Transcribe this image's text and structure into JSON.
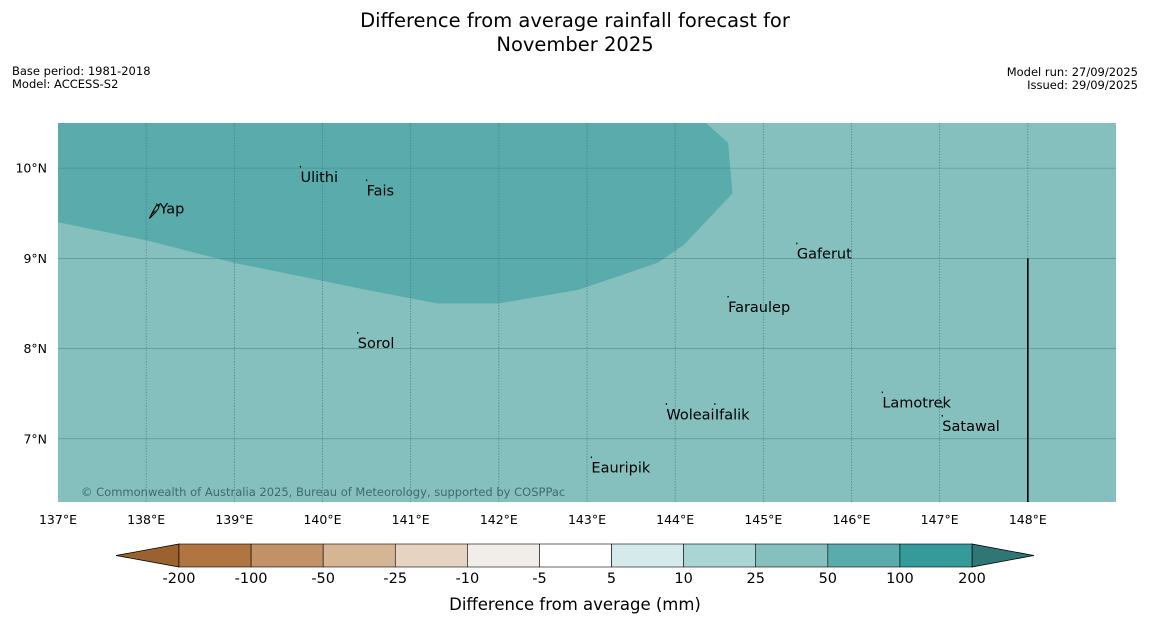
{
  "title": {
    "line1": "Difference from average rainfall forecast for",
    "line2": "November 2025"
  },
  "meta_left": {
    "base_period": "Base period: 1981-2018",
    "model": "Model: ACCESS-S2"
  },
  "meta_right": {
    "model_run": "Model run: 27/09/2025",
    "issued": "Issued: 29/09/2025"
  },
  "map": {
    "lon_range": [
      137,
      149
    ],
    "lat_range": [
      6.3,
      10.5
    ],
    "base_color": "#85c0bf",
    "wet_zone_color": "#5aabac",
    "grid_color": "#3f7f80",
    "copyright": "© Commonwealth of Australia 2025, Bureau of Meteorology, supported by COSPPac",
    "lon_ticks": [
      {
        "value": 137,
        "label": "137°E"
      },
      {
        "value": 138,
        "label": "138°E"
      },
      {
        "value": 139,
        "label": "139°E"
      },
      {
        "value": 140,
        "label": "140°E"
      },
      {
        "value": 141,
        "label": "141°E"
      },
      {
        "value": 142,
        "label": "142°E"
      },
      {
        "value": 143,
        "label": "143°E"
      },
      {
        "value": 144,
        "label": "144°E"
      },
      {
        "value": 145,
        "label": "145°E"
      },
      {
        "value": 146,
        "label": "146°E"
      },
      {
        "value": 147,
        "label": "147°E"
      },
      {
        "value": 148,
        "label": "148°E"
      }
    ],
    "lat_ticks": [
      {
        "value": 10,
        "label": "10°N"
      },
      {
        "value": 9,
        "label": "9°N"
      },
      {
        "value": 8,
        "label": "8°N"
      },
      {
        "value": 7,
        "label": "7°N"
      }
    ],
    "wet_zone_boundary": [
      [
        137,
        9.4
      ],
      [
        138,
        9.2
      ],
      [
        139,
        8.95
      ],
      [
        140,
        8.75
      ],
      [
        140.5,
        8.65
      ],
      [
        141.3,
        8.5
      ],
      [
        142,
        8.5
      ],
      [
        142.9,
        8.65
      ],
      [
        143.8,
        8.95
      ],
      [
        144.1,
        9.15
      ],
      [
        144.65,
        9.72
      ],
      [
        144.6,
        10.28
      ],
      [
        144.35,
        10.5
      ],
      [
        137,
        10.5
      ]
    ],
    "boundary_line": {
      "lon": 148,
      "lat_from": 6.3,
      "lat_to": 9.0
    },
    "places": [
      {
        "name": "Ulithi",
        "lon": 139.75,
        "lat": 9.88
      },
      {
        "name": "Fais",
        "lon": 140.5,
        "lat": 9.73
      },
      {
        "name": "Yap",
        "lon": 138.15,
        "lat": 9.53
      },
      {
        "name": "Gaferut",
        "lon": 145.38,
        "lat": 9.03
      },
      {
        "name": "Faraulep",
        "lon": 144.6,
        "lat": 8.44
      },
      {
        "name": "Sorol",
        "lon": 140.4,
        "lat": 8.04
      },
      {
        "name": "Lamotrek",
        "lon": 146.35,
        "lat": 7.38
      },
      {
        "name": "Woleai",
        "lon": 143.9,
        "lat": 7.25
      },
      {
        "name": "Ifalik",
        "lon": 144.45,
        "lat": 7.25
      },
      {
        "name": "Satawal",
        "lon": 147.03,
        "lat": 7.12
      },
      {
        "name": "Eauripik",
        "lon": 143.05,
        "lat": 6.66
      }
    ]
  },
  "legend": {
    "title": "Difference from average (mm)",
    "low_extend_color": "#9b6230",
    "high_extend_color": "#2f7677",
    "bins": [
      {
        "color": "#b07540"
      },
      {
        "color": "#c29168"
      },
      {
        "color": "#d6b595"
      },
      {
        "color": "#e6d3c2"
      },
      {
        "color": "#f1ede8"
      },
      {
        "color": "#ffffff"
      },
      {
        "color": "#d5eaea"
      },
      {
        "color": "#a9d5d5"
      },
      {
        "color": "#85c0bf"
      },
      {
        "color": "#5aabac"
      },
      {
        "color": "#359a9a"
      }
    ],
    "tick_labels": [
      "-200",
      "-100",
      "-50",
      "-25",
      "-10",
      "-5",
      "5",
      "10",
      "25",
      "50",
      "100",
      "200"
    ]
  }
}
